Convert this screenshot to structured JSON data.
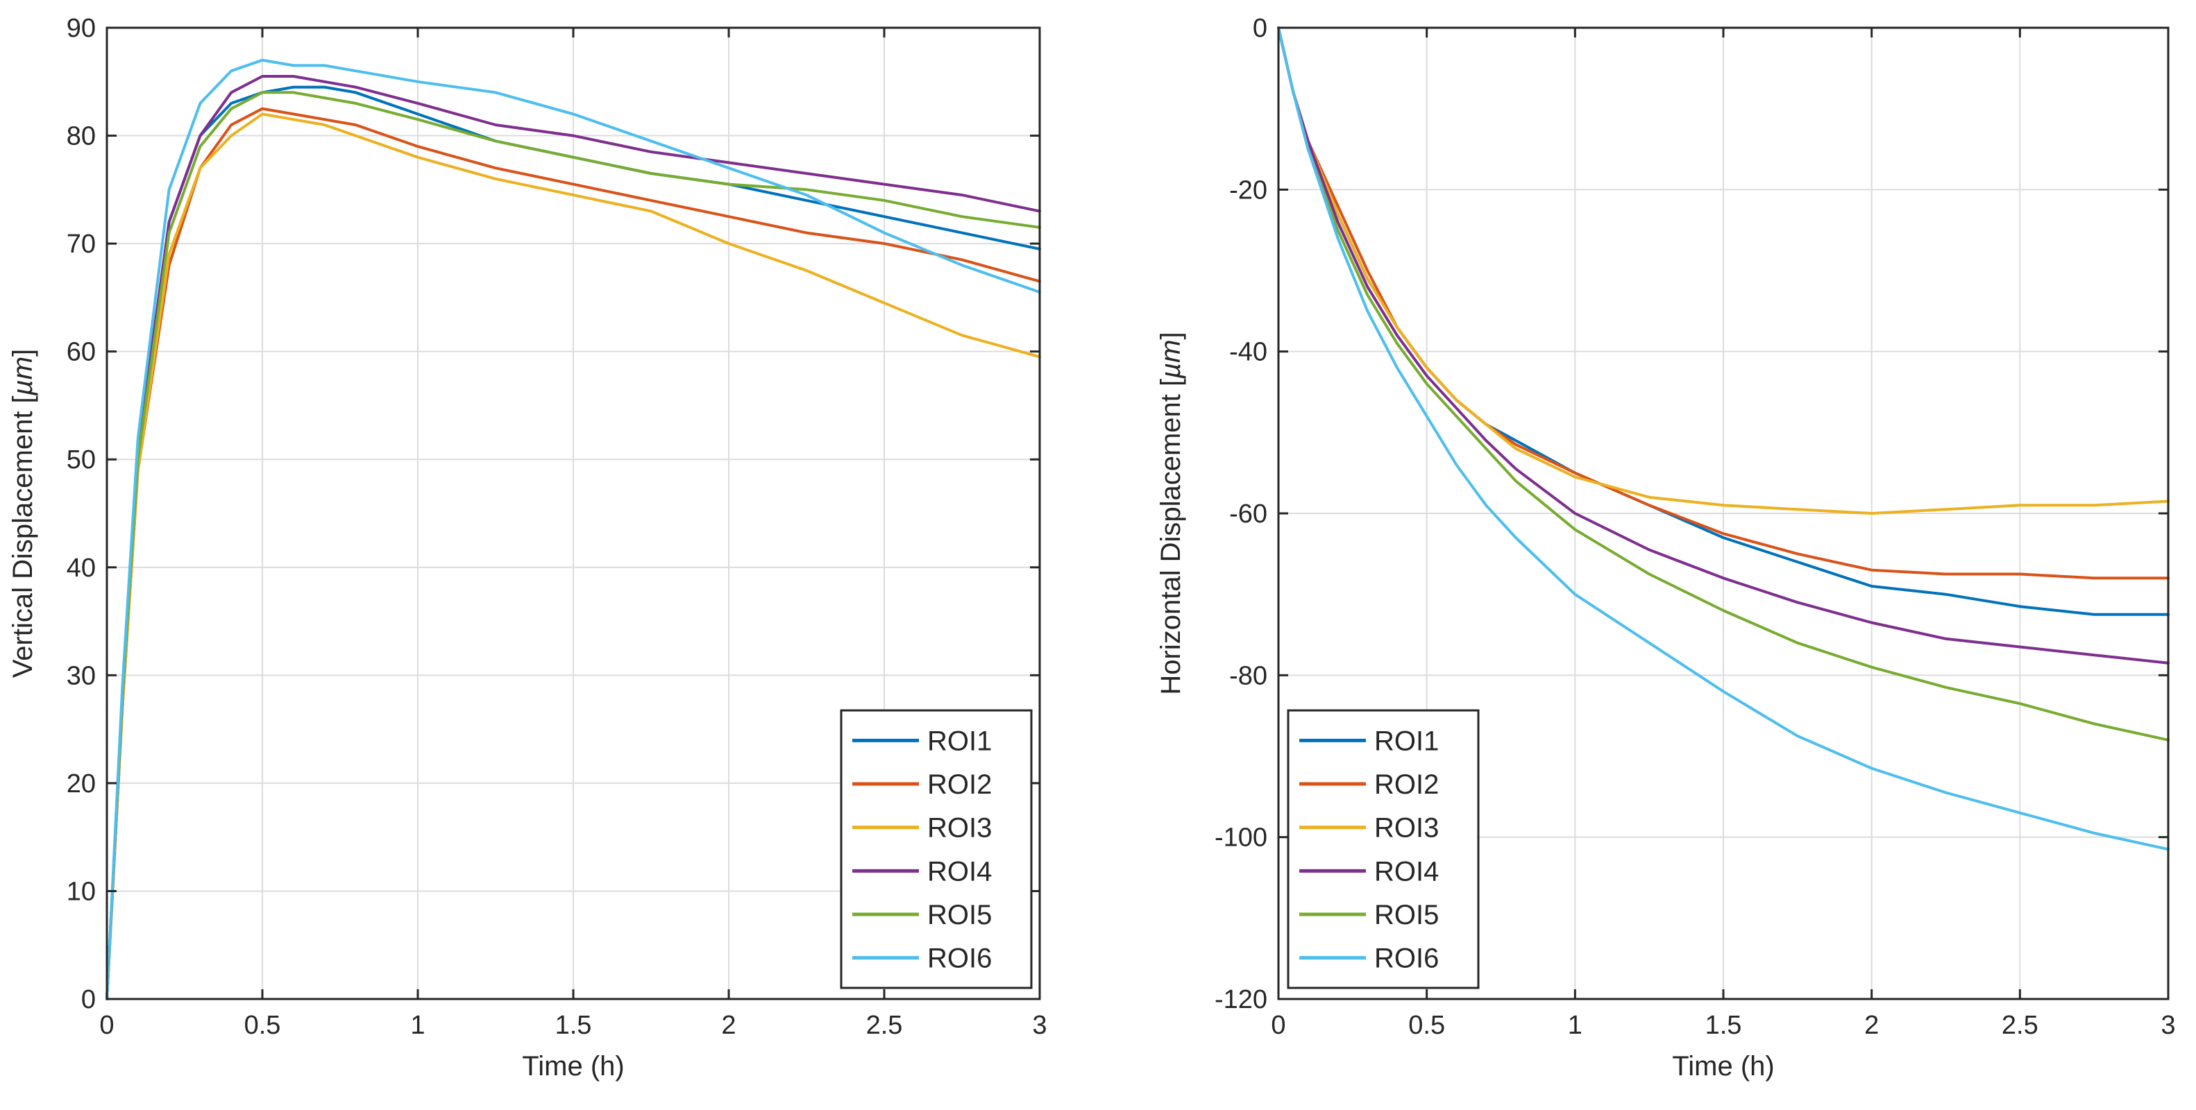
{
  "chart_data": [
    {
      "type": "line",
      "title": "",
      "xlabel": "Time (h)",
      "ylabel": "Vertical Displacement [",
      "ylabel_unit": "µm",
      "ylabel_close": "]",
      "xlim": [
        0,
        3
      ],
      "ylim": [
        0,
        90
      ],
      "xticks": [
        0,
        0.5,
        1,
        1.5,
        2,
        2.5,
        3
      ],
      "xtick_labels": [
        "0",
        "0.5",
        "1",
        "1.5",
        "2",
        "2.5",
        "3"
      ],
      "yticks": [
        0,
        10,
        20,
        30,
        40,
        50,
        60,
        70,
        80,
        90
      ],
      "ytick_labels": [
        "0",
        "10",
        "20",
        "30",
        "40",
        "50",
        "60",
        "70",
        "80",
        "90"
      ],
      "grid": true,
      "legend": "bottom-right",
      "x": [
        0,
        0.05,
        0.1,
        0.2,
        0.3,
        0.4,
        0.5,
        0.6,
        0.7,
        0.8,
        1.0,
        1.25,
        1.5,
        1.75,
        2.0,
        2.25,
        2.5,
        2.75,
        3.0
      ],
      "series": [
        {
          "name": "ROI1",
          "color": "#0072bd",
          "values": [
            0,
            28,
            50,
            72,
            80,
            83,
            84,
            84.5,
            84.5,
            84,
            82,
            79.5,
            78,
            76.5,
            75.5,
            74,
            72.5,
            71,
            69.5
          ]
        },
        {
          "name": "ROI2",
          "color": "#d95319",
          "values": [
            0,
            27,
            49,
            68,
            77,
            81,
            82.5,
            82,
            81.5,
            81,
            79,
            77,
            75.5,
            74,
            72.5,
            71,
            70,
            68.5,
            66.5
          ]
        },
        {
          "name": "ROI3",
          "color": "#edb120",
          "values": [
            0,
            27,
            49,
            69,
            77,
            80,
            82,
            81.5,
            81,
            80,
            78,
            76,
            74.5,
            73,
            70,
            67.5,
            64.5,
            61.5,
            59.5
          ]
        },
        {
          "name": "ROI4",
          "color": "#7e2f8e",
          "values": [
            0,
            28,
            51,
            72,
            80,
            84,
            85.5,
            85.5,
            85,
            84.5,
            83,
            81,
            80,
            78.5,
            77.5,
            76.5,
            75.5,
            74.5,
            73
          ]
        },
        {
          "name": "ROI5",
          "color": "#77ac30",
          "values": [
            0,
            28,
            50,
            71,
            79,
            82.5,
            84,
            84,
            83.5,
            83,
            81.5,
            79.5,
            78,
            76.5,
            75.5,
            75,
            74,
            72.5,
            71.5
          ]
        },
        {
          "name": "ROI6",
          "color": "#4dbeee",
          "values": [
            0,
            29,
            52,
            75,
            83,
            86,
            87,
            86.5,
            86.5,
            86,
            85,
            84,
            82,
            79.5,
            77,
            74.5,
            71,
            68,
            65.5
          ]
        }
      ]
    },
    {
      "type": "line",
      "title": "",
      "xlabel": "Time (h)",
      "ylabel": "Horizontal Displacement [",
      "ylabel_unit": "µm",
      "ylabel_close": "]",
      "xlim": [
        0,
        3
      ],
      "ylim": [
        -120,
        0
      ],
      "xticks": [
        0,
        0.5,
        1,
        1.5,
        2,
        2.5,
        3
      ],
      "xtick_labels": [
        "0",
        "0.5",
        "1",
        "1.5",
        "2",
        "2.5",
        "3"
      ],
      "yticks": [
        -120,
        -100,
        -80,
        -60,
        -40,
        -20,
        0
      ],
      "ytick_labels": [
        "-120",
        "-100",
        "-80",
        "-60",
        "-40",
        "-20",
        "0"
      ],
      "grid": true,
      "legend": "bottom-left",
      "x": [
        0,
        0.05,
        0.1,
        0.2,
        0.3,
        0.4,
        0.5,
        0.6,
        0.7,
        0.8,
        1.0,
        1.25,
        1.5,
        1.75,
        2.0,
        2.25,
        2.5,
        2.75,
        3.0
      ],
      "series": [
        {
          "name": "ROI1",
          "color": "#0072bd",
          "values": [
            0,
            -8,
            -14,
            -23,
            -31,
            -37,
            -42,
            -46,
            -49,
            -51,
            -55,
            -59,
            -63,
            -66,
            -69,
            -70,
            -71.5,
            -72.5,
            -72.5
          ]
        },
        {
          "name": "ROI2",
          "color": "#d95319",
          "values": [
            0,
            -8,
            -14,
            -22,
            -30,
            -37,
            -42,
            -46,
            -49,
            -51.5,
            -55,
            -59,
            -62.5,
            -65,
            -67,
            -67.5,
            -67.5,
            -68,
            -68
          ]
        },
        {
          "name": "ROI3",
          "color": "#edb120",
          "values": [
            0,
            -8,
            -14,
            -23,
            -31,
            -37,
            -42,
            -46,
            -49,
            -52,
            -55.5,
            -58,
            -59,
            -59.5,
            -60,
            -59.5,
            -59,
            -59,
            -58.5
          ]
        },
        {
          "name": "ROI4",
          "color": "#7e2f8e",
          "values": [
            0,
            -8,
            -14,
            -24,
            -32,
            -38,
            -43,
            -47,
            -51,
            -54.5,
            -60,
            -64.5,
            -68,
            -71,
            -73.5,
            -75.5,
            -76.5,
            -77.5,
            -78.5
          ]
        },
        {
          "name": "ROI5",
          "color": "#77ac30",
          "values": [
            0,
            -8,
            -15,
            -25,
            -33,
            -39,
            -44,
            -48,
            -52,
            -56,
            -62,
            -67.5,
            -72,
            -76,
            -79,
            -81.5,
            -83.5,
            -86,
            -88
          ]
        },
        {
          "name": "ROI6",
          "color": "#4dbeee",
          "values": [
            0,
            -8,
            -15,
            -26,
            -35,
            -42,
            -48,
            -54,
            -59,
            -63,
            -70,
            -76,
            -82,
            -87.5,
            -91.5,
            -94.5,
            -97,
            -99.5,
            -101.5
          ]
        }
      ]
    }
  ]
}
